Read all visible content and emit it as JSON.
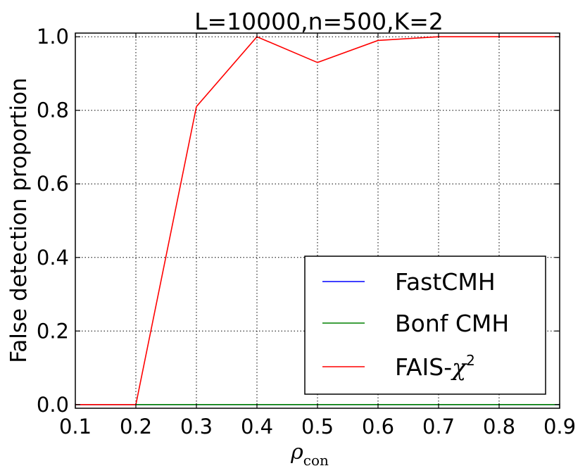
{
  "chart_data": {
    "type": "line",
    "title": "L=10000,n=500,K=2",
    "xlabel_main": "ρ",
    "xlabel_sub": "con",
    "ylabel": "False detection proportion",
    "xlim": [
      0.1,
      0.9
    ],
    "ylim": [
      -0.01,
      1.01
    ],
    "xticks": [
      "0.1",
      "0.2",
      "0.3",
      "0.4",
      "0.5",
      "0.6",
      "0.7",
      "0.8",
      "0.9"
    ],
    "yticks": [
      "0.0",
      "0.2",
      "0.4",
      "0.6",
      "0.8",
      "1.0"
    ],
    "grid": true,
    "legend_position": "lower-right",
    "x": [
      0.1,
      0.2,
      0.3,
      0.4,
      0.5,
      0.6,
      0.7,
      0.8,
      0.9
    ],
    "series": [
      {
        "name": "FastCMH",
        "color": "#0000ff",
        "values": [
          0,
          0,
          0,
          0,
          0,
          0,
          0,
          0,
          0
        ]
      },
      {
        "name": "Bonf CMH",
        "color": "#008000",
        "values": [
          0,
          0,
          0,
          0,
          0,
          0,
          0,
          0,
          0
        ]
      },
      {
        "name": "FAIS-χ²",
        "color": "#ff0000",
        "values": [
          0.0,
          0.0,
          0.81,
          1.0,
          0.93,
          0.99,
          1.0,
          1.0,
          1.0
        ]
      }
    ],
    "legend_labels": {
      "fastcmh": "FastCMH",
      "bonf": "Bonf CMH",
      "fais_prefix": "FAIS-",
      "fais_symbol": "χ",
      "fais_sup": "2"
    }
  }
}
